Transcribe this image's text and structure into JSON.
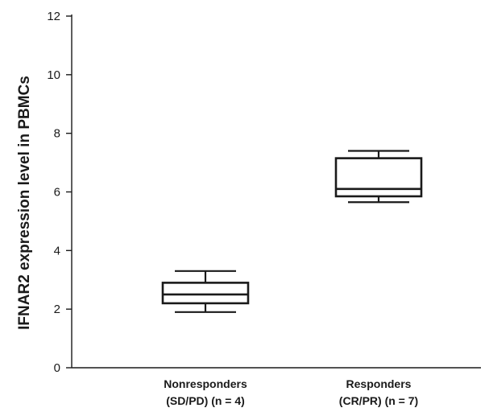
{
  "chart_data": {
    "type": "box",
    "title": "",
    "ylabel": "IFNAR2 expression level in PBMCs",
    "ylim": [
      0,
      12
    ],
    "yticks": [
      0,
      2,
      4,
      6,
      8,
      10,
      12
    ],
    "grid": false,
    "categories": [
      {
        "label_line1": "Nonresponders",
        "label_line2": "(SD/PD) (n = 4)",
        "whisker_low": 1.9,
        "q1": 2.2,
        "median": 2.5,
        "q3": 2.9,
        "whisker_high": 3.3
      },
      {
        "label_line1": "Responders",
        "label_line2": "(CR/PR) (n = 7)",
        "whisker_low": 5.65,
        "q1": 5.85,
        "median": 6.1,
        "q3": 7.15,
        "whisker_high": 7.4
      }
    ]
  }
}
